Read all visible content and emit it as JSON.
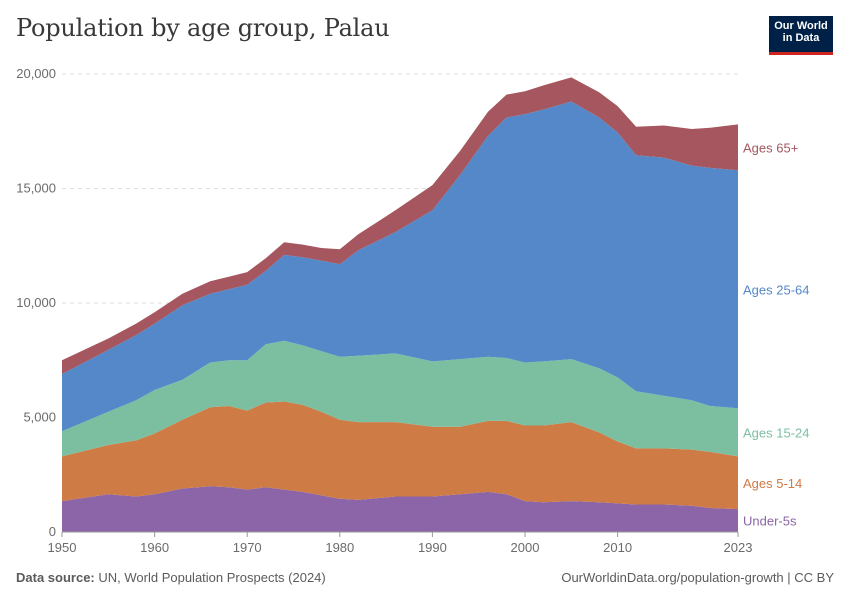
{
  "title": "Population by age group, Palau",
  "logo": {
    "line1": "Our World",
    "line2": "in Data"
  },
  "footer": {
    "source_label": "Data source:",
    "source_text": "UN, World Population Prospects (2024)",
    "link": "OurWorldinData.org/population-growth | CC BY"
  },
  "colors": {
    "under5": "#8b65a8",
    "age5_14": "#ce7b45",
    "age15_24": "#7cbfa0",
    "age25_64": "#5588c8",
    "age65": "#a5565e",
    "grid": "#dddddd",
    "axis_text": "#6b6b6b"
  },
  "chart_data": {
    "type": "area",
    "stacked": true,
    "title": "Population by age group, Palau",
    "xlabel": "",
    "ylabel": "",
    "xlim": [
      1950,
      2023
    ],
    "ylim": [
      0,
      20000
    ],
    "x_ticks": [
      1950,
      1960,
      1970,
      1980,
      1990,
      2000,
      2010,
      2023
    ],
    "y_ticks": [
      0,
      5000,
      10000,
      15000,
      20000
    ],
    "y_tick_labels": [
      "0",
      "5,000",
      "10,000",
      "15,000",
      "20,000"
    ],
    "grid": "horizontal dashed",
    "x": [
      1950,
      1955,
      1958,
      1960,
      1963,
      1966,
      1968,
      1970,
      1972,
      1974,
      1976,
      1978,
      1980,
      1982,
      1986,
      1990,
      1993,
      1996,
      1998,
      2000,
      2002,
      2005,
      2008,
      2010,
      2012,
      2015,
      2018,
      2020,
      2023
    ],
    "series": [
      {
        "name": "Under-5s",
        "label": "Under-5s",
        "values": [
          1350,
          1650,
          1550,
          1650,
          1900,
          2000,
          1950,
          1850,
          1950,
          1850,
          1750,
          1600,
          1450,
          1400,
          1550,
          1550,
          1650,
          1750,
          1650,
          1350,
          1300,
          1350,
          1300,
          1250,
          1200,
          1200,
          1150,
          1050,
          1000
        ]
      },
      {
        "name": "Ages 5-14",
        "label": "Ages 5-14",
        "values": [
          1950,
          2150,
          2450,
          2650,
          3000,
          3450,
          3550,
          3450,
          3700,
          3850,
          3800,
          3650,
          3450,
          3400,
          3250,
          3050,
          2950,
          3100,
          3200,
          3300,
          3350,
          3450,
          3050,
          2700,
          2450,
          2450,
          2450,
          2450,
          2300
        ]
      },
      {
        "name": "Ages 15-24",
        "label": "Ages 15-24",
        "values": [
          1100,
          1450,
          1750,
          1900,
          1750,
          1950,
          2000,
          2200,
          2550,
          2650,
          2600,
          2650,
          2750,
          2900,
          3000,
          2850,
          2950,
          2800,
          2750,
          2750,
          2800,
          2750,
          2800,
          2800,
          2500,
          2300,
          2150,
          2000,
          2100
        ]
      },
      {
        "name": "Ages 25-64",
        "label": "Ages 25-64",
        "values": [
          2500,
          2700,
          2850,
          2900,
          3250,
          3000,
          3100,
          3300,
          3200,
          3750,
          3850,
          3950,
          4050,
          4600,
          5300,
          6600,
          8050,
          9650,
          10500,
          10850,
          11000,
          11250,
          10950,
          10700,
          10300,
          10400,
          10250,
          10400,
          10400
        ]
      },
      {
        "name": "Ages 65+",
        "label": "Ages 65+",
        "values": [
          600,
          500,
          500,
          500,
          500,
          550,
          550,
          550,
          550,
          550,
          550,
          550,
          650,
          700,
          950,
          1100,
          1050,
          1050,
          1000,
          1000,
          1050,
          1050,
          1100,
          1150,
          1250,
          1400,
          1600,
          1750,
          2000
        ]
      }
    ]
  }
}
